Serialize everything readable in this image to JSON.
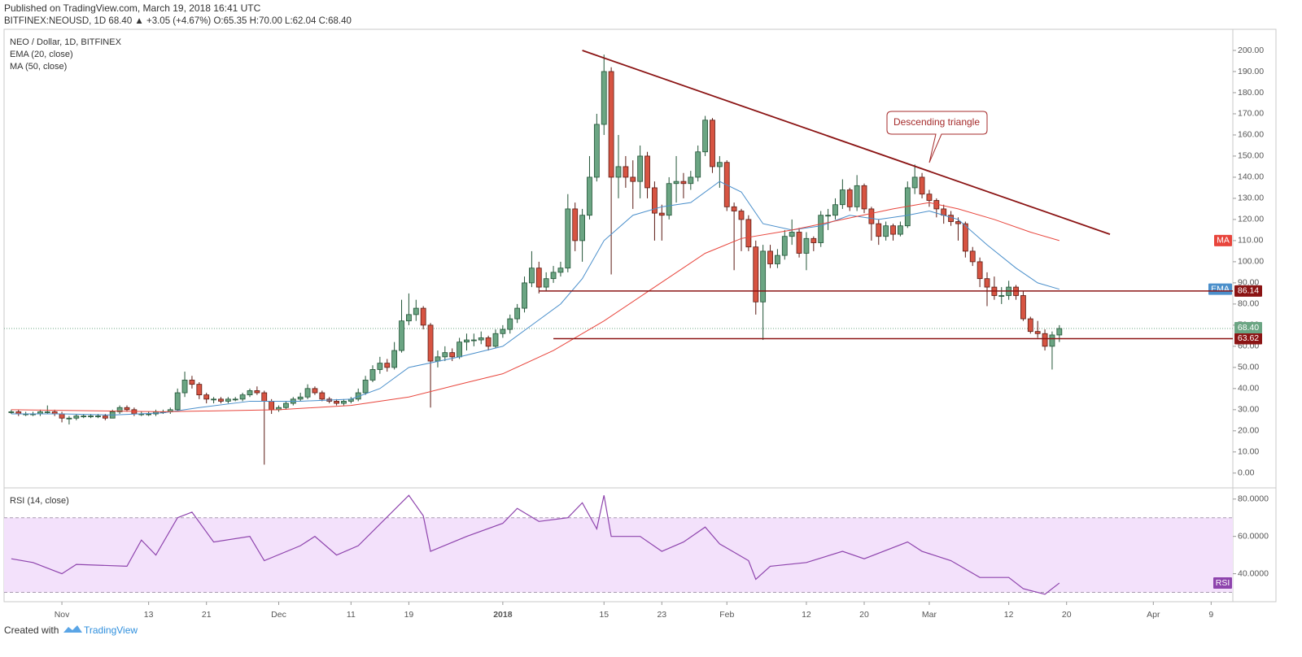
{
  "header": {
    "published": "Published on TradingView.com, March 19, 2018 16:41 UTC",
    "quote": "BITFINEX:NEOUSD, 1D 68.40 ▲ +3.05 (+4.67%) O:65.35 H:70.00 L:62.04 C:68.40"
  },
  "footer": {
    "created_with": "Created with",
    "brand": "TradingView"
  },
  "chart_data": [
    {
      "type": "candlestick",
      "title": "NEO / Dollar, 1D, BITFINEX",
      "up_color": "#6ba583",
      "up_border": "#225437",
      "down_color": "#d75442",
      "down_border": "#5b1a13",
      "xlim": [
        "2017-10-24",
        "2018-04-12"
      ],
      "xticks": [
        {
          "value": "2017-11-01",
          "label": "Nov"
        },
        {
          "value": "2017-11-13",
          "label": "13"
        },
        {
          "value": "2017-11-21",
          "label": "21"
        },
        {
          "value": "2017-12-01",
          "label": "Dec"
        },
        {
          "value": "2017-12-11",
          "label": "11"
        },
        {
          "value": "2017-12-19",
          "label": "19"
        },
        {
          "value": "2018-01-01",
          "label": "2018"
        },
        {
          "value": "2018-01-15",
          "label": "15"
        },
        {
          "value": "2018-01-23",
          "label": "23"
        },
        {
          "value": "2018-02-01",
          "label": "Feb"
        },
        {
          "value": "2018-02-12",
          "label": "12"
        },
        {
          "value": "2018-02-20",
          "label": "20"
        },
        {
          "value": "2018-03-01",
          "label": "Mar"
        },
        {
          "value": "2018-03-12",
          "label": "12"
        },
        {
          "value": "2018-03-20",
          "label": "20"
        },
        {
          "value": "2018-04-01",
          "label": "Apr"
        },
        {
          "value": "2018-04-09",
          "label": "9"
        }
      ],
      "ylim": [
        -7,
        210
      ],
      "yticks": [
        {
          "value": 0,
          "label": "0.00"
        },
        {
          "value": 10,
          "label": "10.00"
        },
        {
          "value": 20,
          "label": "20.00"
        },
        {
          "value": 30,
          "label": "30.00"
        },
        {
          "value": 40,
          "label": "40.00"
        },
        {
          "value": 50,
          "label": "50.00"
        },
        {
          "value": 60,
          "label": "60.00"
        },
        {
          "value": 70,
          "label": "70.00"
        },
        {
          "value": 80,
          "label": "80.00"
        },
        {
          "value": 90,
          "label": "90.00"
        },
        {
          "value": 100,
          "label": "100.00"
        },
        {
          "value": 110,
          "label": "110.00"
        },
        {
          "value": 120,
          "label": "120.00"
        },
        {
          "value": 130,
          "label": "130.00"
        },
        {
          "value": 140,
          "label": "140.00"
        },
        {
          "value": 150,
          "label": "150.00"
        },
        {
          "value": 160,
          "label": "160.00"
        },
        {
          "value": 170,
          "label": "170.00"
        },
        {
          "value": 180,
          "label": "180.00"
        },
        {
          "value": 190,
          "label": "190.00"
        },
        {
          "value": 200,
          "label": "200.00"
        }
      ],
      "x": [
        "2017-10-25",
        "2017-10-26",
        "2017-10-27",
        "2017-10-28",
        "2017-10-29",
        "2017-10-30",
        "2017-10-31",
        "2017-11-01",
        "2017-11-02",
        "2017-11-03",
        "2017-11-04",
        "2017-11-05",
        "2017-11-06",
        "2017-11-07",
        "2017-11-08",
        "2017-11-09",
        "2017-11-10",
        "2017-11-11",
        "2017-11-12",
        "2017-11-13",
        "2017-11-14",
        "2017-11-15",
        "2017-11-16",
        "2017-11-17",
        "2017-11-18",
        "2017-11-19",
        "2017-11-20",
        "2017-11-21",
        "2017-11-22",
        "2017-11-23",
        "2017-11-24",
        "2017-11-25",
        "2017-11-26",
        "2017-11-27",
        "2017-11-28",
        "2017-11-29",
        "2017-11-30",
        "2017-12-01",
        "2017-12-02",
        "2017-12-03",
        "2017-12-04",
        "2017-12-05",
        "2017-12-06",
        "2017-12-07",
        "2017-12-08",
        "2017-12-09",
        "2017-12-10",
        "2017-12-11",
        "2017-12-12",
        "2017-12-13",
        "2017-12-14",
        "2017-12-15",
        "2017-12-16",
        "2017-12-17",
        "2017-12-18",
        "2017-12-19",
        "2017-12-20",
        "2017-12-21",
        "2017-12-22",
        "2017-12-23",
        "2017-12-24",
        "2017-12-25",
        "2017-12-26",
        "2017-12-27",
        "2017-12-28",
        "2017-12-29",
        "2017-12-30",
        "2017-12-31",
        "2018-01-01",
        "2018-01-02",
        "2018-01-03",
        "2018-01-04",
        "2018-01-05",
        "2018-01-06",
        "2018-01-07",
        "2018-01-08",
        "2018-01-09",
        "2018-01-10",
        "2018-01-11",
        "2018-01-12",
        "2018-01-13",
        "2018-01-14",
        "2018-01-15",
        "2018-01-16",
        "2018-01-17",
        "2018-01-18",
        "2018-01-19",
        "2018-01-20",
        "2018-01-21",
        "2018-01-22",
        "2018-01-23",
        "2018-01-24",
        "2018-01-25",
        "2018-01-26",
        "2018-01-27",
        "2018-01-28",
        "2018-01-29",
        "2018-01-30",
        "2018-01-31",
        "2018-02-01",
        "2018-02-02",
        "2018-02-03",
        "2018-02-04",
        "2018-02-05",
        "2018-02-06",
        "2018-02-07",
        "2018-02-08",
        "2018-02-09",
        "2018-02-10",
        "2018-02-11",
        "2018-02-12",
        "2018-02-13",
        "2018-02-14",
        "2018-02-15",
        "2018-02-16",
        "2018-02-17",
        "2018-02-18",
        "2018-02-19",
        "2018-02-20",
        "2018-02-21",
        "2018-02-22",
        "2018-02-23",
        "2018-02-24",
        "2018-02-25",
        "2018-02-26",
        "2018-02-27",
        "2018-02-28",
        "2018-03-01",
        "2018-03-02",
        "2018-03-03",
        "2018-03-04",
        "2018-03-05",
        "2018-03-06",
        "2018-03-07",
        "2018-03-08",
        "2018-03-09",
        "2018-03-10",
        "2018-03-11",
        "2018-03-12",
        "2018-03-13",
        "2018-03-14",
        "2018-03-15",
        "2018-03-16",
        "2018-03-17",
        "2018-03-18",
        "2018-03-19"
      ],
      "open": [
        29,
        29,
        28,
        28,
        28,
        29,
        29,
        28,
        26,
        26,
        27,
        27,
        27,
        27,
        26,
        29,
        31,
        30,
        28,
        28,
        28,
        29,
        29,
        30,
        38,
        44,
        42,
        37,
        35,
        35,
        34,
        35,
        35,
        37,
        39,
        38,
        34,
        30,
        31,
        33,
        35,
        36,
        40,
        38,
        35,
        34,
        33,
        34,
        35,
        38,
        44,
        49,
        52,
        50,
        58,
        72,
        75,
        78,
        70,
        53,
        55,
        57,
        55,
        62,
        63,
        63,
        64,
        60,
        66,
        68,
        73,
        78,
        90,
        97,
        88,
        92,
        95,
        97,
        125,
        110,
        122,
        140,
        165,
        190,
        140,
        145,
        140,
        138,
        150,
        135,
        123,
        122,
        137,
        138,
        137,
        140,
        152,
        167,
        145,
        147,
        126,
        124,
        120,
        107,
        81,
        105,
        99,
        103,
        112,
        114,
        104,
        111,
        109,
        122,
        122,
        127,
        134,
        126,
        136,
        125,
        118,
        112,
        117,
        113,
        117,
        135,
        140,
        132,
        129,
        125,
        122,
        119,
        118,
        105,
        100,
        92,
        88,
        84,
        84,
        88,
        84,
        73,
        67,
        66,
        60,
        65.35
      ],
      "high": [
        30,
        30,
        29,
        29,
        30,
        32,
        30,
        29,
        27,
        28,
        28,
        28,
        28,
        28,
        30,
        32,
        32,
        31,
        29,
        29,
        30,
        30,
        31,
        40,
        48,
        46,
        43,
        38,
        36,
        36,
        36,
        36,
        38,
        40,
        41,
        39,
        35,
        32,
        34,
        36,
        38,
        42,
        41,
        39,
        36,
        35,
        35,
        36,
        40,
        46,
        51,
        55,
        54,
        62,
        82,
        85,
        82,
        79,
        71,
        58,
        60,
        59,
        64,
        66,
        66,
        67,
        65,
        68,
        70,
        75,
        80,
        93,
        105,
        100,
        95,
        98,
        100,
        132,
        128,
        125,
        150,
        170,
        198,
        192,
        160,
        150,
        148,
        155,
        152,
        138,
        127,
        140,
        150,
        142,
        143,
        155,
        169,
        168,
        150,
        148,
        128,
        125,
        122,
        110,
        108,
        108,
        106,
        115,
        120,
        116,
        114,
        112,
        124,
        125,
        130,
        139,
        135,
        141,
        137,
        126,
        120,
        119,
        118,
        119,
        138,
        146,
        142,
        134,
        130,
        127,
        124,
        121,
        119,
        107,
        102,
        95,
        93,
        88,
        91,
        89,
        86,
        74,
        72,
        68,
        67,
        70
      ],
      "low": [
        28,
        27,
        27,
        27,
        27,
        28,
        27,
        24,
        23,
        25,
        26,
        26,
        26,
        25,
        26,
        28,
        29,
        27,
        27,
        27,
        27,
        28,
        28,
        29,
        36,
        40,
        35,
        33,
        33,
        33,
        33,
        34,
        34,
        36,
        37,
        4,
        28,
        29,
        30,
        32,
        34,
        35,
        37,
        34,
        33,
        32,
        32,
        33,
        34,
        37,
        43,
        47,
        48,
        49,
        57,
        70,
        72,
        68,
        31,
        50,
        53,
        53,
        54,
        58,
        60,
        61,
        58,
        59,
        64,
        66,
        71,
        76,
        88,
        85,
        86,
        90,
        93,
        95,
        105,
        100,
        120,
        138,
        160,
        94,
        130,
        135,
        125,
        130,
        130,
        110,
        110,
        120,
        128,
        130,
        134,
        138,
        150,
        142,
        135,
        124,
        96,
        105,
        105,
        75,
        63,
        97,
        97,
        101,
        108,
        102,
        96,
        105,
        107,
        115,
        120,
        125,
        124,
        124,
        123,
        110,
        108,
        110,
        110,
        112,
        116,
        132,
        130,
        126,
        121,
        118,
        117,
        110,
        102,
        98,
        88,
        79,
        82,
        80,
        82,
        82,
        72,
        66,
        64,
        58,
        49,
        62.04
      ],
      "close": [
        29,
        28,
        28,
        28,
        29,
        29,
        28,
        26,
        26,
        27,
        27,
        27,
        27,
        26,
        29,
        31,
        30,
        28,
        28,
        28,
        29,
        29,
        30,
        38,
        44,
        42,
        37,
        35,
        35,
        34,
        35,
        35,
        37,
        39,
        38,
        34,
        30,
        31,
        33,
        35,
        36,
        40,
        38,
        35,
        34,
        33,
        34,
        35,
        38,
        44,
        49,
        52,
        50,
        58,
        72,
        75,
        78,
        70,
        53,
        55,
        57,
        55,
        62,
        63,
        63,
        64,
        60,
        66,
        68,
        73,
        78,
        90,
        97,
        88,
        92,
        95,
        97,
        125,
        110,
        122,
        140,
        165,
        190,
        140,
        145,
        140,
        138,
        150,
        135,
        123,
        122,
        137,
        138,
        137,
        140,
        152,
        167,
        145,
        147,
        126,
        124,
        120,
        107,
        81,
        105,
        99,
        103,
        112,
        114,
        104,
        111,
        109,
        122,
        122,
        127,
        134,
        126,
        136,
        125,
        118,
        112,
        117,
        113,
        117,
        135,
        140,
        132,
        129,
        125,
        122,
        119,
        118,
        105,
        100,
        92,
        88,
        84,
        84,
        88,
        84,
        73,
        67,
        66,
        60,
        65.35,
        68.4
      ],
      "series": [
        {
          "name": "EMA (20, close)",
          "tag": "EMA",
          "color": "#4a8fcb",
          "x": [
            "2017-10-25",
            "2017-11-01",
            "2017-11-08",
            "2017-11-15",
            "2017-11-20",
            "2017-11-27",
            "2017-12-04",
            "2017-12-11",
            "2017-12-15",
            "2017-12-19",
            "2017-12-26",
            "2018-01-01",
            "2018-01-05",
            "2018-01-09",
            "2018-01-12",
            "2018-01-15",
            "2018-01-19",
            "2018-01-23",
            "2018-01-27",
            "2018-01-31",
            "2018-02-03",
            "2018-02-06",
            "2018-02-10",
            "2018-02-14",
            "2018-02-18",
            "2018-02-22",
            "2018-02-26",
            "2018-03-01",
            "2018-03-05",
            "2018-03-09",
            "2018-03-13",
            "2018-03-16",
            "2018-03-19"
          ],
          "values": [
            28,
            28,
            27.5,
            28.5,
            31,
            34,
            34,
            35,
            40,
            50,
            55,
            60,
            70,
            80,
            92,
            110,
            122,
            126,
            128,
            138,
            133,
            118,
            115,
            117,
            122,
            120,
            122,
            124,
            120,
            108,
            97,
            90,
            87
          ]
        },
        {
          "name": "MA (50, close)",
          "tag": "MA",
          "color": "#e8453c",
          "x": [
            "2017-10-25",
            "2017-11-15",
            "2017-12-01",
            "2017-12-11",
            "2017-12-19",
            "2017-12-26",
            "2018-01-01",
            "2018-01-08",
            "2018-01-15",
            "2018-01-22",
            "2018-01-29",
            "2018-02-03",
            "2018-02-10",
            "2018-02-17",
            "2018-02-24",
            "2018-03-01",
            "2018-03-05",
            "2018-03-10",
            "2018-03-15",
            "2018-03-19"
          ],
          "values": [
            30,
            29,
            30,
            32,
            36,
            42,
            47,
            58,
            72,
            88,
            104,
            111,
            115,
            120,
            125,
            128,
            125,
            120,
            114,
            110
          ]
        }
      ],
      "level_color": "#8b1414",
      "levels": [
        {
          "value": 86.14,
          "from": "2018-01-06"
        },
        {
          "value": 63.62,
          "from": "2018-01-08"
        }
      ],
      "last_price": {
        "value": 68.4,
        "label": "68.40"
      },
      "trendline": {
        "x": [
          "2018-01-12",
          "2018-03-26"
        ],
        "values": [
          200,
          113
        ]
      },
      "annotation": "Descending triangle"
    },
    {
      "type": "line",
      "title": "RSI (14, close)",
      "tag": "RSI",
      "color": "#8e44ad",
      "band": [
        30,
        70
      ],
      "band_color": "#f3e1fb",
      "xlim": [
        "2017-10-24",
        "2018-04-12"
      ],
      "ylim": [
        25,
        86
      ],
      "yticks": [
        {
          "value": 40,
          "label": "40.0000"
        },
        {
          "value": 60,
          "label": "60.0000"
        },
        {
          "value": 80,
          "label": "80.0000"
        }
      ],
      "x": [
        "2017-10-25",
        "2017-10-28",
        "2017-11-01",
        "2017-11-03",
        "2017-11-10",
        "2017-11-12",
        "2017-11-14",
        "2017-11-17",
        "2017-11-19",
        "2017-11-22",
        "2017-11-27",
        "2017-11-29",
        "2017-12-04",
        "2017-12-06",
        "2017-12-09",
        "2017-12-12",
        "2017-12-19",
        "2017-12-21",
        "2017-12-22",
        "2017-12-27",
        "2018-01-01",
        "2018-01-03",
        "2018-01-06",
        "2018-01-10",
        "2018-01-12",
        "2018-01-14",
        "2018-01-15",
        "2018-01-16",
        "2018-01-20",
        "2018-01-23",
        "2018-01-26",
        "2018-01-29",
        "2018-01-31",
        "2018-02-04",
        "2018-02-05",
        "2018-02-07",
        "2018-02-12",
        "2018-02-17",
        "2018-02-20",
        "2018-02-26",
        "2018-02-28",
        "2018-03-04",
        "2018-03-08",
        "2018-03-12",
        "2018-03-14",
        "2018-03-17",
        "2018-03-19"
      ],
      "values": [
        48,
        46,
        40,
        45,
        44,
        58,
        50,
        70,
        73,
        57,
        60,
        47,
        55,
        60,
        50,
        55,
        82,
        71,
        52,
        60,
        67,
        75,
        68,
        70,
        78,
        64,
        82,
        60,
        60,
        52,
        57,
        65,
        56,
        47,
        37,
        44,
        46,
        52,
        48,
        57,
        52,
        47,
        38,
        38,
        32,
        29,
        35
      ]
    }
  ]
}
